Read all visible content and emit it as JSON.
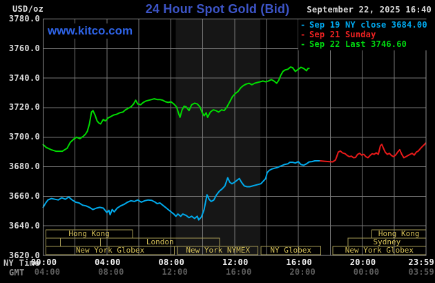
{
  "header": {
    "unit_label": "USD/oz",
    "title": "24 Hour Spot Gold (Bid)",
    "datetime": "September 22, 2025 16:40",
    "watermark": "www.kitco.com"
  },
  "legend": {
    "items": [
      {
        "marker": "-",
        "label": "Sep 19 NY close 3684.00",
        "color": "#00aaf0"
      },
      {
        "marker": "-",
        "label": "Sep 21 Sunday",
        "color": "#ee2222"
      },
      {
        "marker": "-",
        "label": "Sep 22 Last 3746.60",
        "color": "#00da10"
      }
    ]
  },
  "axes": {
    "y": {
      "min": 3620,
      "max": 3780,
      "step": 20,
      "labels": [
        "3780.0",
        "3760.0",
        "3740.0",
        "3720.0",
        "3700.0",
        "3680.0",
        "3660.0",
        "3640.0",
        "3620.0"
      ]
    },
    "x": {
      "label_hours": [
        0,
        4,
        8,
        12,
        16,
        20,
        24
      ],
      "ny": {
        "name": "NY Time",
        "labels": [
          "00:00",
          "04:00",
          "08:00",
          "12:00",
          "16:00",
          "20:00",
          "23:59"
        ]
      },
      "gmt": {
        "name": "GMT",
        "labels": [
          "04:00",
          "08:00",
          "12:00",
          "16:00",
          "20:00",
          "00:00",
          "03:59"
        ]
      }
    }
  },
  "sessions": {
    "border_color": "#a59a55",
    "text_color": "#d6c158",
    "rows": [
      [
        {
          "label": "Hong Kong",
          "start": 0.17,
          "end": 5.6
        },
        {
          "label": "Hong Kong",
          "start": 20.6,
          "end": 24
        }
      ],
      [
        {
          "label": "",
          "start": 0.17,
          "end": 1.08
        },
        {
          "label": "",
          "start": 1.08,
          "end": 3.6
        },
        {
          "label": "London",
          "start": 3.6,
          "end": 11.05
        },
        {
          "label": "Sydney",
          "start": 19.1,
          "end": 24
        }
      ],
      [
        {
          "label": "New York Globex",
          "start": 0.17,
          "end": 8.23
        },
        {
          "label": "New York NYMEX",
          "start": 8.45,
          "end": 13.47
        },
        {
          "label": "NY Globex",
          "start": 13.65,
          "end": 17.4
        },
        {
          "label": "New York Globex",
          "start": 18.15,
          "end": 24
        }
      ]
    ]
  },
  "chart_data": {
    "type": "line",
    "title": "24 Hour Spot Gold (Bid)",
    "ylabel": "USD/oz",
    "xlabel": "NY Time (hours)",
    "xlim": [
      0,
      24
    ],
    "ylim": [
      3620,
      3780
    ],
    "y_step": 20,
    "x_grid_step_hours": 2,
    "grid": true,
    "grid_color": "#787878",
    "border_color": "#909090",
    "shaded_span": {
      "start_hour": 8.3,
      "end_hour": 13.6,
      "color": "#161616",
      "note": "New York NYMEX floor session"
    },
    "series": [
      {
        "name": "Sep 19 NY close 3684.00",
        "color": "#00aaec",
        "close": 3684.0,
        "points": [
          [
            0,
            3652.5
          ],
          [
            0.13,
            3655
          ],
          [
            0.3,
            3657.5
          ],
          [
            0.52,
            3658.5
          ],
          [
            0.74,
            3658
          ],
          [
            0.95,
            3657.5
          ],
          [
            1.17,
            3659
          ],
          [
            1.39,
            3658
          ],
          [
            1.6,
            3659.5
          ],
          [
            1.82,
            3657.5
          ],
          [
            2.04,
            3656
          ],
          [
            2.25,
            3655.5
          ],
          [
            2.47,
            3654
          ],
          [
            2.69,
            3653.5
          ],
          [
            2.9,
            3652.5
          ],
          [
            3.12,
            3651
          ],
          [
            3.34,
            3652
          ],
          [
            3.55,
            3652.5
          ],
          [
            3.77,
            3652
          ],
          [
            3.99,
            3649
          ],
          [
            4.12,
            3650.5
          ],
          [
            4.2,
            3647.5
          ],
          [
            4.33,
            3651
          ],
          [
            4.46,
            3649.5
          ],
          [
            4.64,
            3652
          ],
          [
            4.85,
            3653.5
          ],
          [
            5.07,
            3654.5
          ],
          [
            5.29,
            3656
          ],
          [
            5.5,
            3657
          ],
          [
            5.72,
            3656.5
          ],
          [
            5.93,
            3657.5
          ],
          [
            6.15,
            3656
          ],
          [
            6.37,
            3657
          ],
          [
            6.58,
            3657.5
          ],
          [
            6.8,
            3657.3
          ],
          [
            7.02,
            3656
          ],
          [
            7.15,
            3655
          ],
          [
            7.32,
            3655.5
          ],
          [
            7.49,
            3654
          ],
          [
            7.67,
            3652.5
          ],
          [
            7.84,
            3651
          ],
          [
            8.01,
            3649.5
          ],
          [
            8.19,
            3648
          ],
          [
            8.32,
            3646.5
          ],
          [
            8.45,
            3648
          ],
          [
            8.62,
            3646.5
          ],
          [
            8.75,
            3648
          ],
          [
            8.97,
            3647
          ],
          [
            9.14,
            3645.5
          ],
          [
            9.31,
            3646.5
          ],
          [
            9.49,
            3645
          ],
          [
            9.66,
            3646.5
          ],
          [
            9.75,
            3644
          ],
          [
            9.92,
            3646
          ],
          [
            10.09,
            3651
          ],
          [
            10.27,
            3661
          ],
          [
            10.4,
            3658
          ],
          [
            10.53,
            3656.5
          ],
          [
            10.7,
            3657.5
          ],
          [
            10.87,
            3661
          ],
          [
            11.05,
            3663.5
          ],
          [
            11.22,
            3665
          ],
          [
            11.39,
            3667
          ],
          [
            11.57,
            3672.5
          ],
          [
            11.7,
            3669.5
          ],
          [
            11.83,
            3668.5
          ],
          [
            12,
            3669.5
          ],
          [
            12.17,
            3671
          ],
          [
            12.3,
            3672
          ],
          [
            12.43,
            3669.5
          ],
          [
            12.61,
            3667
          ],
          [
            12.78,
            3666.5
          ],
          [
            12.95,
            3666.5
          ],
          [
            13.13,
            3667
          ],
          [
            13.3,
            3667.5
          ],
          [
            13.47,
            3668
          ],
          [
            13.65,
            3668.5
          ],
          [
            13.82,
            3670.5
          ],
          [
            13.95,
            3672
          ],
          [
            14.04,
            3676
          ],
          [
            14.17,
            3677.5
          ],
          [
            14.34,
            3678.5
          ],
          [
            14.51,
            3679
          ],
          [
            14.69,
            3679.5
          ],
          [
            14.9,
            3680.5
          ],
          [
            15.12,
            3681.5
          ],
          [
            15.34,
            3682
          ],
          [
            15.47,
            3683
          ],
          [
            15.64,
            3683
          ],
          [
            15.81,
            3682.5
          ],
          [
            15.99,
            3683.5
          ],
          [
            16.16,
            3681.5
          ],
          [
            16.33,
            3681
          ],
          [
            16.51,
            3682
          ],
          [
            16.68,
            3683.3
          ],
          [
            16.85,
            3683.5
          ],
          [
            17.03,
            3684
          ],
          [
            17.2,
            3684
          ],
          [
            17.37,
            3684
          ]
        ]
      },
      {
        "name": "Sep 21 Sunday",
        "color": "#ea1a1a",
        "points": [
          [
            17.37,
            3684
          ],
          [
            17.63,
            3683.7
          ],
          [
            17.89,
            3683.5
          ],
          [
            18.15,
            3683.3
          ],
          [
            18.32,
            3684.5
          ],
          [
            18.41,
            3687
          ],
          [
            18.5,
            3689.9
          ],
          [
            18.63,
            3690.7
          ],
          [
            18.76,
            3689.4
          ],
          [
            18.93,
            3688.8
          ],
          [
            19.06,
            3687.6
          ],
          [
            19.19,
            3686.8
          ],
          [
            19.32,
            3687.2
          ],
          [
            19.45,
            3686.1
          ],
          [
            19.58,
            3686.3
          ],
          [
            19.71,
            3688.4
          ],
          [
            19.84,
            3689.1
          ],
          [
            19.97,
            3687.9
          ],
          [
            20.1,
            3688.4
          ],
          [
            20.23,
            3686.8
          ],
          [
            20.36,
            3686.1
          ],
          [
            20.49,
            3687.6
          ],
          [
            20.62,
            3688.8
          ],
          [
            20.75,
            3688.4
          ],
          [
            20.88,
            3689.4
          ],
          [
            21.01,
            3688.4
          ],
          [
            21.14,
            3694.2
          ],
          [
            21.23,
            3695.1
          ],
          [
            21.31,
            3693.1
          ],
          [
            21.44,
            3689.9
          ],
          [
            21.57,
            3688.4
          ],
          [
            21.7,
            3689.1
          ],
          [
            21.83,
            3687.6
          ],
          [
            21.96,
            3686.8
          ],
          [
            22.09,
            3687.9
          ],
          [
            22.22,
            3689.9
          ],
          [
            22.35,
            3691.5
          ],
          [
            22.48,
            3688.4
          ],
          [
            22.61,
            3686.1
          ],
          [
            22.74,
            3686.8
          ],
          [
            22.87,
            3687.6
          ],
          [
            23,
            3688.4
          ],
          [
            23.13,
            3689.1
          ],
          [
            23.26,
            3687.9
          ],
          [
            23.39,
            3689.9
          ],
          [
            23.52,
            3690.7
          ],
          [
            23.65,
            3692.3
          ],
          [
            23.78,
            3693.8
          ],
          [
            23.91,
            3695.1
          ],
          [
            23.98,
            3696
          ]
        ]
      },
      {
        "name": "Sep 22 Last 3746.60",
        "color": "#00dc00",
        "last": 3746.6,
        "points": [
          [
            0,
            3695
          ],
          [
            0.2,
            3693
          ],
          [
            0.5,
            3691.5
          ],
          [
            0.8,
            3690.5
          ],
          [
            1.2,
            3690.5
          ],
          [
            1.5,
            3692.5
          ],
          [
            1.7,
            3696.5
          ],
          [
            1.95,
            3699
          ],
          [
            2.1,
            3700
          ],
          [
            2.3,
            3699
          ],
          [
            2.5,
            3700.5
          ],
          [
            2.65,
            3702
          ],
          [
            2.77,
            3704
          ],
          [
            2.9,
            3709
          ],
          [
            3.03,
            3717
          ],
          [
            3.12,
            3718
          ],
          [
            3.25,
            3715
          ],
          [
            3.38,
            3711
          ],
          [
            3.5,
            3709.5
          ],
          [
            3.6,
            3709
          ],
          [
            3.77,
            3712
          ],
          [
            3.9,
            3711
          ],
          [
            4.07,
            3713
          ],
          [
            4.25,
            3714
          ],
          [
            4.42,
            3715
          ],
          [
            4.6,
            3715.5
          ],
          [
            4.8,
            3716.5
          ],
          [
            5,
            3717
          ],
          [
            5.16,
            3718.5
          ],
          [
            5.33,
            3719.5
          ],
          [
            5.5,
            3720.5
          ],
          [
            5.67,
            3722.5
          ],
          [
            5.8,
            3725
          ],
          [
            5.93,
            3722.5
          ],
          [
            6.11,
            3722
          ],
          [
            6.28,
            3723.5
          ],
          [
            6.45,
            3724.5
          ],
          [
            6.63,
            3725
          ],
          [
            6.8,
            3725.5
          ],
          [
            6.97,
            3726
          ],
          [
            7.15,
            3725.5
          ],
          [
            7.32,
            3725.5
          ],
          [
            7.49,
            3725
          ],
          [
            7.67,
            3724
          ],
          [
            7.84,
            3723.5
          ],
          [
            8.01,
            3724
          ],
          [
            8.19,
            3722.5
          ],
          [
            8.36,
            3720.5
          ],
          [
            8.49,
            3716
          ],
          [
            8.58,
            3713.5
          ],
          [
            8.71,
            3718.5
          ],
          [
            8.84,
            3721
          ],
          [
            8.97,
            3720.5
          ],
          [
            9.14,
            3718
          ],
          [
            9.31,
            3722
          ],
          [
            9.49,
            3723
          ],
          [
            9.66,
            3722.5
          ],
          [
            9.83,
            3720.5
          ],
          [
            9.96,
            3717
          ],
          [
            10.09,
            3714.5
          ],
          [
            10.22,
            3716.5
          ],
          [
            10.31,
            3713.5
          ],
          [
            10.48,
            3717
          ],
          [
            10.66,
            3718.5
          ],
          [
            10.83,
            3718
          ],
          [
            11,
            3717
          ],
          [
            11.18,
            3718.5
          ],
          [
            11.35,
            3718
          ],
          [
            11.52,
            3720.5
          ],
          [
            11.7,
            3724
          ],
          [
            11.87,
            3727.5
          ],
          [
            12.04,
            3729.5
          ],
          [
            12.22,
            3731
          ],
          [
            12.39,
            3733.5
          ],
          [
            12.56,
            3735
          ],
          [
            12.74,
            3736
          ],
          [
            12.91,
            3736.5
          ],
          [
            13.08,
            3735.5
          ],
          [
            13.26,
            3736.5
          ],
          [
            13.43,
            3737
          ],
          [
            13.6,
            3737.5
          ],
          [
            13.78,
            3738
          ],
          [
            13.95,
            3737.5
          ],
          [
            14.12,
            3738
          ],
          [
            14.3,
            3739
          ],
          [
            14.47,
            3738
          ],
          [
            14.64,
            3736.5
          ],
          [
            14.77,
            3738.5
          ],
          [
            14.9,
            3742
          ],
          [
            15.03,
            3744.5
          ],
          [
            15.16,
            3745.5
          ],
          [
            15.34,
            3746
          ],
          [
            15.51,
            3747.5
          ],
          [
            15.64,
            3747
          ],
          [
            15.81,
            3744.5
          ],
          [
            15.99,
            3746
          ],
          [
            16.16,
            3747.3
          ],
          [
            16.33,
            3746.5
          ],
          [
            16.51,
            3745
          ],
          [
            16.6,
            3746.5
          ],
          [
            16.67,
            3746.6
          ]
        ]
      }
    ]
  }
}
